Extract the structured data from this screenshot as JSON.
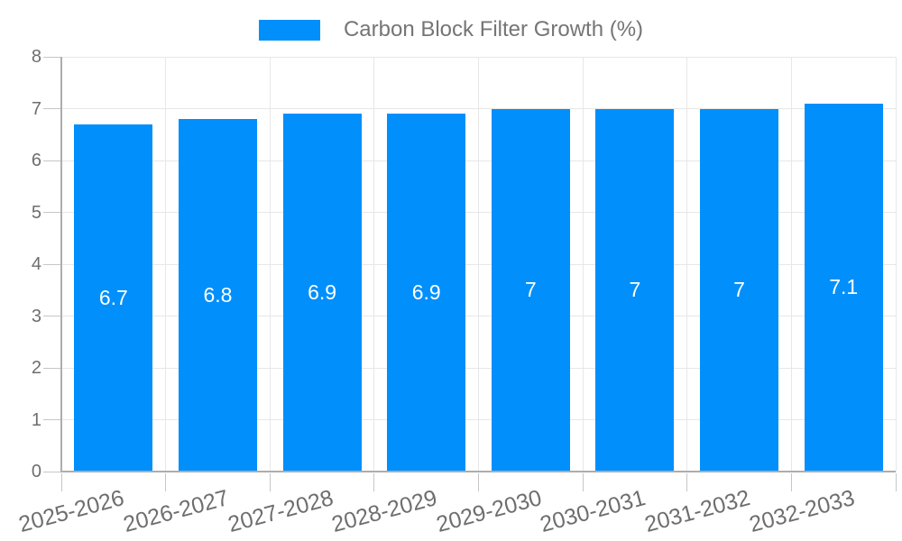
{
  "legend": {
    "label": "Carbon Block Filter Growth (%)"
  },
  "colors": {
    "background": "#FFFFFF",
    "bar": "#008FFB",
    "legend_text": "#757575",
    "axis_label": "#6E6E6E",
    "grid_line": "#E7E7E7",
    "axis_line": "#ADADAD",
    "tick_mark": "#C6C6C6",
    "data_label": "#FFFFFF"
  },
  "chart_data": {
    "type": "bar",
    "title": "Carbon Block Filter Growth (%)",
    "categories": [
      "2025-2026",
      "2026-2027",
      "2027-2028",
      "2028-2029",
      "2029-2030",
      "2030-2031",
      "2031-2032",
      "2032-2033"
    ],
    "series": [
      {
        "name": "Carbon Block Filter Growth (%)",
        "values": [
          6.7,
          6.8,
          6.9,
          6.9,
          7,
          7,
          7,
          7.1
        ]
      }
    ],
    "data_labels": [
      "6.7",
      "6.8",
      "6.9",
      "6.9",
      "7",
      "7",
      "7",
      "7.1"
    ],
    "xlabel": "",
    "ylabel": "",
    "ylim": [
      0,
      8
    ],
    "yticks": [
      0,
      1,
      2,
      3,
      4,
      5,
      6,
      7,
      8
    ],
    "grid": true,
    "legend_position": "top",
    "x_label_rotation_deg": -15
  }
}
